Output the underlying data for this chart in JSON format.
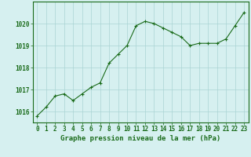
{
  "x": [
    0,
    1,
    2,
    3,
    4,
    5,
    6,
    7,
    8,
    9,
    10,
    11,
    12,
    13,
    14,
    15,
    16,
    17,
    18,
    19,
    20,
    21,
    22,
    23
  ],
  "y": [
    1015.8,
    1016.2,
    1016.7,
    1016.8,
    1016.5,
    1016.8,
    1017.1,
    1017.3,
    1018.2,
    1018.6,
    1019.0,
    1019.9,
    1020.1,
    1020.0,
    1019.8,
    1019.6,
    1019.4,
    1019.0,
    1019.1,
    1019.1,
    1019.1,
    1019.3,
    1019.9,
    1020.5
  ],
  "line_color": "#1a6b1a",
  "marker": "+",
  "bg_color": "#d6f0f0",
  "grid_color": "#aad4d4",
  "axis_color": "#1a6b1a",
  "xlabel": "Graphe pression niveau de la mer (hPa)",
  "xlabel_fontsize": 6.5,
  "tick_fontsize": 5.5,
  "ylim": [
    1015.5,
    1021.0
  ],
  "yticks": [
    1016,
    1017,
    1018,
    1019,
    1020
  ],
  "xticks": [
    0,
    1,
    2,
    3,
    4,
    5,
    6,
    7,
    8,
    9,
    10,
    11,
    12,
    13,
    14,
    15,
    16,
    17,
    18,
    19,
    20,
    21,
    22,
    23
  ],
  "xlim": [
    -0.5,
    23.5
  ]
}
